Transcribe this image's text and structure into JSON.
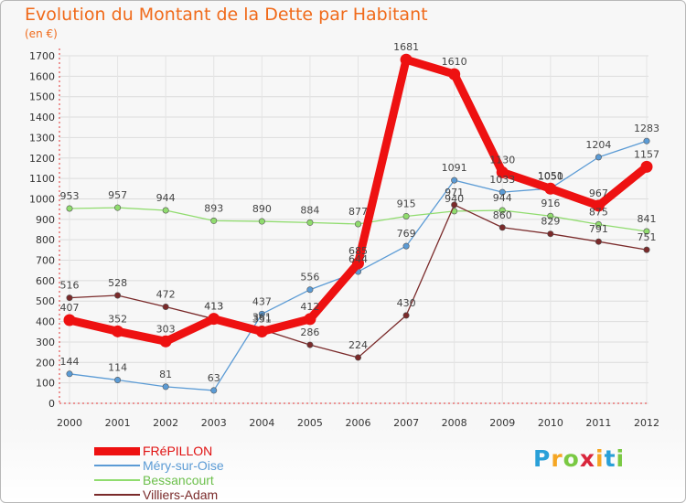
{
  "header": {
    "title": "Evolution du Montant de la Dette par Habitant",
    "unit": "(en €)"
  },
  "logo": {
    "text": "Proxiti",
    "letters": [
      "P",
      "r",
      "o",
      "x",
      "i",
      "t",
      "i"
    ],
    "colors": [
      "#2aa0d8",
      "#f5a623",
      "#7ac943",
      "#d9263c",
      "#f5a623",
      "#2aa0d8",
      "#7ac943"
    ]
  },
  "chart_data": {
    "type": "line",
    "x": [
      "2000",
      "2001",
      "2002",
      "2003",
      "2004",
      "2005",
      "2006",
      "2007",
      "2008",
      "2009",
      "2010",
      "2011",
      "2012"
    ],
    "ylim": [
      0,
      1700
    ],
    "yticks": [
      0,
      100,
      200,
      300,
      400,
      500,
      600,
      700,
      800,
      900,
      1000,
      1100,
      1200,
      1300,
      1400,
      1500,
      1600,
      1700
    ],
    "grid": true,
    "legend_position": "bottom-left",
    "series": [
      {
        "name": "Méry-sur-Oise",
        "color": "#5b9bd5",
        "values": [
          144,
          114,
          81,
          63,
          437,
          556,
          644,
          769,
          1091,
          1033,
          1051,
          1204,
          1283
        ]
      },
      {
        "name": "Bessancourt",
        "color": "#90dc6e",
        "values": [
          953,
          957,
          944,
          893,
          890,
          884,
          877,
          915,
          940,
          944,
          916,
          875,
          841
        ]
      },
      {
        "name": "Villiers-Adam",
        "color": "#7a2a2a",
        "values": [
          516,
          528,
          472,
          413,
          361,
          286,
          224,
          430,
          971,
          860,
          829,
          791,
          751
        ]
      },
      {
        "name": "FRéPILLON",
        "color": "#ee1111",
        "values": [
          407,
          352,
          303,
          413,
          351,
          412,
          685,
          1681,
          1610,
          1130,
          1050,
          967,
          1157
        ]
      }
    ],
    "legend_order": [
      "FRéPILLON",
      "Méry-sur-Oise",
      "Bessancourt",
      "Villiers-Adam"
    ]
  }
}
